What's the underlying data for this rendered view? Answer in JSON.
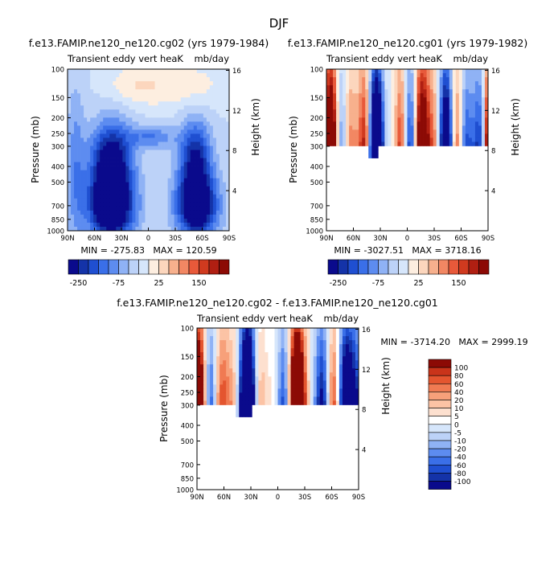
{
  "figure_title": "DJF",
  "colors": {
    "main": [
      "#0a0a8c",
      "#1433a8",
      "#1f4fd1",
      "#3a6fe8",
      "#5d8cf0",
      "#8fb2f5",
      "#bcd2f8",
      "#d6e6fb",
      "#fdeee0",
      "#fcd6bd",
      "#f7b08d",
      "#f28763",
      "#e8593a",
      "#d03a1f",
      "#b01f12",
      "#8c0a05"
    ],
    "diff": [
      "#0a0a8c",
      "#1433a8",
      "#1f4fd1",
      "#3a6fe8",
      "#5d8cf0",
      "#8fb2f5",
      "#bcd2f8",
      "#d6e6fb",
      "#ffffff",
      "#fde0cf",
      "#fcc3a5",
      "#f7a07a",
      "#f07a52",
      "#e4552f",
      "#c9341a",
      "#8c0a05"
    ]
  },
  "chart_data": [
    {
      "id": "panel1",
      "type": "heatmap",
      "title": "f.e13.FAMIP.ne120_ne120.cg02 (yrs 1979-1984)",
      "subtitle_left": "Transient eddy vert heaK",
      "subtitle_right": "mb/day",
      "ylabel": "Pressure (mb)",
      "ylabel_right": "Height (km)",
      "x_ticks": [
        "90N",
        "60N",
        "30N",
        "0",
        "30S",
        "60S",
        "90S"
      ],
      "y_ticks": [
        "100",
        "150",
        "200",
        "250",
        "300",
        "400",
        "500",
        "700",
        "850",
        "1000"
      ],
      "y_right_ticks": [
        "16",
        "12",
        "8",
        "4"
      ],
      "stats": "MIN = -275.83   MAX = 120.59",
      "colorbar_labels": [
        "-250",
        "-75",
        "25",
        "150"
      ]
    },
    {
      "id": "panel2",
      "type": "heatmap",
      "title": "f.e13.FAMIP.ne120_ne120.cg01 (yrs 1979-1982)",
      "subtitle_left": "Transient eddy vert heaK",
      "subtitle_right": "mb/day",
      "ylabel": "Pressure (mb)",
      "ylabel_right": "Height (km)",
      "x_ticks": [
        "90N",
        "60N",
        "30N",
        "0",
        "30S",
        "60S",
        "90S"
      ],
      "y_ticks": [
        "100",
        "150",
        "200",
        "250",
        "300",
        "400",
        "500",
        "700",
        "850",
        "1000"
      ],
      "y_right_ticks": [
        "16",
        "12",
        "8",
        "4"
      ],
      "stats": "MIN = -3027.51   MAX = 3718.16",
      "colorbar_labels": [
        "-250",
        "-75",
        "25",
        "150"
      ]
    },
    {
      "id": "panel3",
      "type": "heatmap",
      "title": "f.e13.FAMIP.ne120_ne120.cg02 - f.e13.FAMIP.ne120_ne120.cg01",
      "subtitle_left": "Transient eddy vert heaK",
      "subtitle_right": "mb/day",
      "ylabel": "Pressure (mb)",
      "ylabel_right": "Height (km)",
      "x_ticks": [
        "90N",
        "60N",
        "30N",
        "0",
        "30S",
        "60S",
        "90S"
      ],
      "y_ticks": [
        "100",
        "150",
        "200",
        "250",
        "300",
        "400",
        "500",
        "700",
        "850",
        "1000"
      ],
      "y_right_ticks": [
        "16",
        "12",
        "8",
        "4"
      ],
      "stats": "MIN = -3714.20   MAX = 2999.19",
      "colorbar_labels": [
        "100",
        "80",
        "60",
        "40",
        "20",
        "10",
        "5",
        "0",
        "-5",
        "-10",
        "-20",
        "-40",
        "-60",
        "-80",
        "-100"
      ]
    }
  ]
}
